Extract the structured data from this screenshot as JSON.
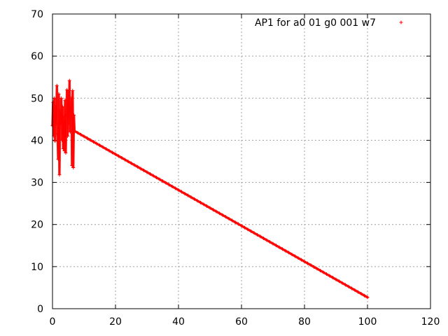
{
  "chart_data": {
    "type": "line",
    "title": "",
    "xlabel": "",
    "ylabel": "",
    "xlim": [
      0,
      120
    ],
    "ylim": [
      0,
      70
    ],
    "x_ticks": [
      0,
      20,
      40,
      60,
      80,
      100,
      120
    ],
    "y_ticks": [
      0,
      10,
      20,
      30,
      40,
      50,
      60,
      70
    ],
    "grid": true,
    "legend_position": "top-right",
    "marker": "plus",
    "color": "#ff0000",
    "series": [
      {
        "name": "AP1 for a0 01 g0 001 w7",
        "noisy": {
          "x": [
            0.0,
            0.2,
            0.4,
            0.6,
            0.8,
            1.0,
            1.2,
            1.4,
            1.6,
            1.8,
            2.0,
            2.2,
            2.4,
            2.6,
            2.8,
            3.0,
            3.2,
            3.4,
            3.6,
            3.8,
            4.0,
            4.2,
            4.4,
            4.6,
            4.8,
            5.0,
            5.2,
            5.4,
            5.6,
            5.8,
            6.0,
            6.2,
            6.4,
            6.6,
            6.8,
            7.0
          ],
          "y": [
            43.5,
            49.0,
            41.0,
            50.0,
            39.8,
            48.0,
            44.0,
            53.0,
            41.5,
            35.5,
            51.0,
            31.8,
            47.0,
            44.0,
            50.0,
            40.0,
            48.0,
            38.0,
            45.5,
            37.5,
            49.5,
            37.0,
            46.0,
            52.0,
            41.0,
            51.5,
            44.0,
            54.2,
            42.0,
            47.5,
            50.0,
            34.0,
            51.8,
            33.5,
            46.0,
            42.0
          ]
        },
        "linear": {
          "x_start": 7,
          "x_end": 100,
          "y_start": 42.2,
          "y_end": 2.7,
          "count": 94
        }
      }
    ]
  }
}
